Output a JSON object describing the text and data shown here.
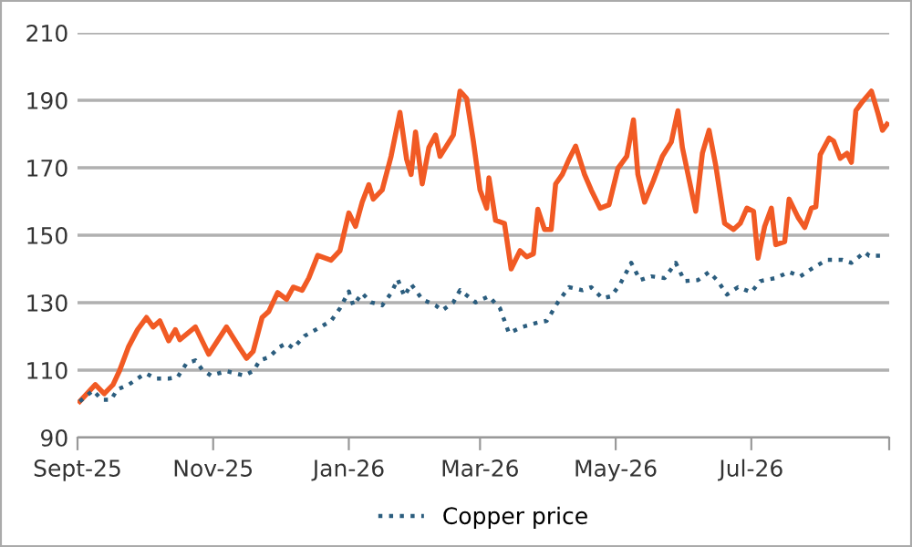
{
  "chart_data": {
    "type": "line",
    "xlim": [
      "2025-09-01",
      "2026-09-01"
    ],
    "xticks": [
      {
        "value": "2025-09-01",
        "label": "Sept-25"
      },
      {
        "value": "2025-11-01",
        "label": "Nov-25"
      },
      {
        "value": "2026-01-01",
        "label": "Jan-26"
      },
      {
        "value": "2026-03-01",
        "label": "Mar-26"
      },
      {
        "value": "2026-05-01",
        "label": "May-26"
      },
      {
        "value": "2026-07-01",
        "label": "Jul-26"
      },
      {
        "value": "2026-09-01",
        "label": null
      }
    ],
    "ylim": [
      90,
      210
    ],
    "yticks": [
      90,
      110,
      130,
      150,
      170,
      190,
      210
    ],
    "grid": "y",
    "legend": "bottom",
    "series": [
      {
        "name": "Copper price",
        "color": "#2b5d7e",
        "line_style": "dotted",
        "x": [
          "2025-09-02",
          "2025-09-08",
          "2025-09-12",
          "2025-09-16",
          "2025-09-19",
          "2025-09-24",
          "2025-09-30",
          "2025-10-02",
          "2025-10-06",
          "2025-10-12",
          "2025-10-16",
          "2025-10-20",
          "2025-10-24",
          "2025-10-27",
          "2025-10-31",
          "2025-11-07",
          "2025-11-15",
          "2025-11-19",
          "2025-11-22",
          "2025-11-26",
          "2025-12-01",
          "2025-12-04",
          "2025-12-07",
          "2025-12-12",
          "2025-12-18",
          "2025-12-24",
          "2025-12-28",
          "2026-01-01",
          "2026-01-03",
          "2026-01-07",
          "2026-01-11",
          "2026-01-16",
          "2026-01-20",
          "2026-01-23",
          "2026-01-26",
          "2026-01-29",
          "2026-02-03",
          "2026-02-09",
          "2026-02-12",
          "2026-02-17",
          "2026-02-20",
          "2026-02-27",
          "2026-03-05",
          "2026-03-10",
          "2026-03-14",
          "2026-03-20",
          "2026-03-27",
          "2026-03-31",
          "2026-04-05",
          "2026-04-10",
          "2026-04-16",
          "2026-04-20",
          "2026-04-25",
          "2026-04-29",
          "2026-05-03",
          "2026-05-08",
          "2026-05-12",
          "2026-05-17",
          "2026-05-23",
          "2026-05-28",
          "2026-06-01",
          "2026-06-07",
          "2026-06-12",
          "2026-06-16",
          "2026-06-20",
          "2026-06-25",
          "2026-07-01",
          "2026-07-05",
          "2026-07-12",
          "2026-07-18",
          "2026-07-23",
          "2026-07-28",
          "2026-08-04",
          "2026-08-11",
          "2026-08-15",
          "2026-08-21",
          "2026-08-23",
          "2026-08-29"
        ],
        "values": [
          100.7,
          104,
          101.2,
          101.2,
          104.3,
          105.7,
          108.4,
          109,
          107.5,
          107.5,
          107.9,
          112,
          112.9,
          110.2,
          108.4,
          109.7,
          108.4,
          109.7,
          112.9,
          113.8,
          116.9,
          118,
          116.5,
          120.1,
          122.3,
          124.6,
          128.3,
          133.3,
          129.2,
          132.8,
          130.1,
          129.2,
          132.8,
          136.9,
          131.9,
          135.5,
          131,
          129.2,
          127.7,
          130.1,
          133.7,
          130.1,
          131.9,
          128.3,
          121,
          122.8,
          124.1,
          124.6,
          130.1,
          134.6,
          133.7,
          134.6,
          131.3,
          131.9,
          135.5,
          141.8,
          136.7,
          137.8,
          137.3,
          141.8,
          136.4,
          136.7,
          139.1,
          136.4,
          132.4,
          134.6,
          133.1,
          136.4,
          137.3,
          139.1,
          137.8,
          140,
          142.7,
          142.7,
          141.8,
          145,
          143.9,
          143.9
        ]
      },
      {
        "color": "#f15a24",
        "line_style": "solid",
        "x": [
          "2025-09-02",
          "2025-09-09",
          "2025-09-13",
          "2025-09-17",
          "2025-09-20",
          "2025-09-24",
          "2025-09-28",
          "2025-10-02",
          "2025-10-05",
          "2025-10-08",
          "2025-10-12",
          "2025-10-15",
          "2025-10-17",
          "2025-10-24",
          "2025-10-30",
          "2025-11-07",
          "2025-11-13",
          "2025-11-16",
          "2025-11-19",
          "2025-11-23",
          "2025-11-26",
          "2025-11-30",
          "2025-12-04",
          "2025-12-07",
          "2025-12-11",
          "2025-12-14",
          "2025-12-18",
          "2025-12-24",
          "2025-12-28",
          "2026-01-01",
          "2026-01-04",
          "2026-01-07",
          "2026-01-10",
          "2026-01-12",
          "2026-01-16",
          "2026-01-20",
          "2026-01-24",
          "2026-01-27",
          "2026-01-29",
          "2026-01-31",
          "2026-02-03",
          "2026-02-06",
          "2026-02-09",
          "2026-02-11",
          "2026-02-17",
          "2026-02-20",
          "2026-02-23",
          "2026-02-26",
          "2026-03-01",
          "2026-03-04",
          "2026-03-05",
          "2026-03-08",
          "2026-03-12",
          "2026-03-15",
          "2026-03-19",
          "2026-03-22",
          "2026-03-25",
          "2026-03-27",
          "2026-03-30",
          "2026-04-02",
          "2026-04-04",
          "2026-04-07",
          "2026-04-10",
          "2026-04-13",
          "2026-04-17",
          "2026-04-20",
          "2026-04-24",
          "2026-04-28",
          "2026-05-02",
          "2026-05-06",
          "2026-05-09",
          "2026-05-11",
          "2026-05-14",
          "2026-05-18",
          "2026-05-22",
          "2026-05-26",
          "2026-05-29",
          "2026-05-31",
          "2026-06-04",
          "2026-06-06",
          "2026-06-09",
          "2026-06-12",
          "2026-06-15",
          "2026-06-19",
          "2026-06-23",
          "2026-06-26",
          "2026-06-29",
          "2026-07-02",
          "2026-07-04",
          "2026-07-07",
          "2026-07-10",
          "2026-07-12",
          "2026-07-16",
          "2026-07-18",
          "2026-07-22",
          "2026-07-25",
          "2026-07-28",
          "2026-07-30",
          "2026-08-01",
          "2026-08-05",
          "2026-08-07",
          "2026-08-10",
          "2026-08-13",
          "2026-08-15",
          "2026-08-17",
          "2026-08-20",
          "2026-08-24",
          "2026-08-27",
          "2026-08-29",
          "2026-08-31"
        ],
        "values": [
          100.7,
          105.7,
          103,
          105.7,
          110,
          117,
          122,
          125.6,
          122.8,
          124.6,
          118.7,
          122,
          119,
          122.8,
          114.7,
          122.8,
          116.5,
          113.5,
          115.6,
          125.6,
          127.4,
          133,
          131,
          134.6,
          133.7,
          137.3,
          144,
          142.6,
          145.4,
          156.6,
          152.6,
          159.8,
          165,
          160.7,
          163.4,
          173.4,
          186.4,
          172.5,
          168,
          180.6,
          165.2,
          176,
          179.7,
          173.4,
          179.7,
          192.7,
          190.5,
          177.9,
          163.4,
          158,
          167,
          154.4,
          153.5,
          140,
          145.4,
          143.6,
          144.5,
          157.7,
          151.7,
          151.7,
          165.2,
          168,
          172.5,
          176.4,
          168,
          163.4,
          158,
          159,
          169.8,
          173.4,
          184.2,
          168,
          159.8,
          166.2,
          173.4,
          177.6,
          186.9,
          176,
          163.4,
          157.1,
          174.3,
          181.1,
          170.7,
          153.5,
          151.7,
          153.5,
          158,
          157.1,
          143.2,
          152.6,
          158,
          147.2,
          148.1,
          160.7,
          155.3,
          152.3,
          158,
          158.4,
          173.9,
          178.8,
          177.9,
          172.8,
          174.3,
          171.6,
          186.9,
          189.6,
          192.7,
          186,
          181.1,
          182.9
        ]
      }
    ]
  }
}
